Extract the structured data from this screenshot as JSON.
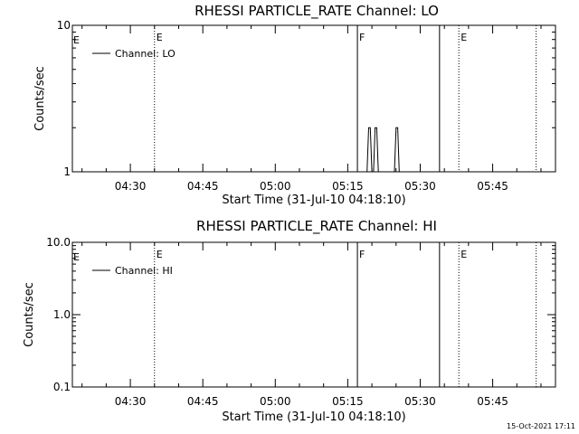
{
  "chart_data": [
    {
      "type": "line",
      "title": "RHESSI PARTICLE_RATE Channel: LO",
      "xlabel": "Start Time (31-Jul-10 04:18:10)",
      "ylabel": "Counts/sec",
      "xlim": [
        "04:18",
        "05:58"
      ],
      "ylim": [
        1,
        10
      ],
      "yscale": "log",
      "yticks": [
        1,
        10
      ],
      "ytick_labels": [
        "1",
        "10"
      ],
      "xtick_labels": [
        "04:30",
        "04:45",
        "05:00",
        "05:15",
        "05:30",
        "05:45"
      ],
      "xticks": [
        "04:30",
        "04:45",
        "05:00",
        "05:15",
        "05:30",
        "05:45"
      ],
      "legend": {
        "label": "Channel: LO",
        "position": "top-left"
      },
      "series": [
        {
          "name": "Channel: LO",
          "x": [
            "05:19:00",
            "05:19:20",
            "05:19:40",
            "05:20:00",
            "05:20:20",
            "05:20:40",
            "05:21:00",
            "05:21:20",
            "05:24:40",
            "05:25:00",
            "05:25:20",
            "05:25:40"
          ],
          "y": [
            1,
            2,
            2,
            1,
            1,
            2,
            2,
            1,
            1,
            2,
            2,
            1
          ]
        }
      ],
      "events": [
        {
          "time": "04:35",
          "style": "dotted",
          "label": "E"
        },
        {
          "time": "05:17",
          "style": "solid",
          "label": "F"
        },
        {
          "time": "05:34",
          "style": "solid",
          "label": ""
        },
        {
          "time": "05:38",
          "style": "dotted",
          "label": "E"
        },
        {
          "time": "05:54",
          "style": "dotted",
          "label": ""
        }
      ],
      "edge_label": "E"
    },
    {
      "type": "line",
      "title": "RHESSI PARTICLE_RATE Channel: HI",
      "xlabel": "Start Time (31-Jul-10 04:18:10)",
      "ylabel": "Counts/sec",
      "xlim": [
        "04:18",
        "05:58"
      ],
      "ylim": [
        0.1,
        10
      ],
      "yscale": "log",
      "yticks": [
        0.1,
        1,
        10
      ],
      "ytick_labels": [
        "0.1",
        "1.0",
        "10.0"
      ],
      "xtick_labels": [
        "04:30",
        "04:45",
        "05:00",
        "05:15",
        "05:30",
        "05:45"
      ],
      "xticks": [
        "04:30",
        "04:45",
        "05:00",
        "05:15",
        "05:30",
        "05:45"
      ],
      "legend": {
        "label": "Channel: HI",
        "position": "top-left"
      },
      "series": [
        {
          "name": "Channel: HI",
          "x": [],
          "y": []
        }
      ],
      "events": [
        {
          "time": "04:35",
          "style": "dotted",
          "label": "E"
        },
        {
          "time": "05:17",
          "style": "solid",
          "label": "F"
        },
        {
          "time": "05:34",
          "style": "solid",
          "label": ""
        },
        {
          "time": "05:38",
          "style": "dotted",
          "label": "E"
        },
        {
          "time": "05:54",
          "style": "dotted",
          "label": ""
        }
      ],
      "edge_label": "E"
    }
  ],
  "timestamp": "15-Oct-2021 17:11"
}
